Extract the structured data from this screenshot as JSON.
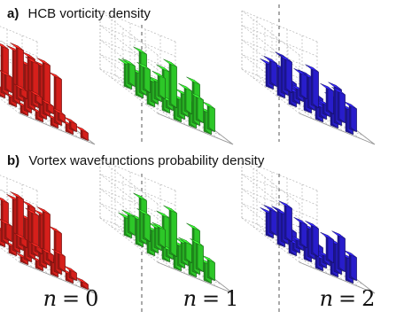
{
  "panel_a": {
    "letter": "a)",
    "title": "HCB vorticity density"
  },
  "panel_b": {
    "letter": "b)",
    "title": "Vortex wavefunctions probability density"
  },
  "columns": [
    {
      "var": "n",
      "eq": "=",
      "value": "0",
      "color": "#e0211c"
    },
    {
      "var": "n",
      "eq": "=",
      "value": "1",
      "color": "#2fd12a"
    },
    {
      "var": "n",
      "eq": "=",
      "value": "2",
      "color": "#2a1fd6"
    }
  ],
  "chart_data": {
    "type": "bar3d",
    "grid_size": [
      5,
      5
    ],
    "panels": [
      {
        "row": "a",
        "n": 0,
        "heights": [
          [
            0.15,
            0.15,
            0.3,
            0.15,
            0.15
          ],
          [
            0.15,
            0.9,
            1.0,
            0.85,
            0.15
          ],
          [
            0.15,
            1.0,
            1.0,
            1.0,
            0.15
          ],
          [
            0.15,
            0.9,
            1.0,
            0.9,
            0.15
          ],
          [
            0.15,
            0.15,
            0.15,
            0.15,
            0.15
          ]
        ]
      },
      {
        "row": "a",
        "n": 1,
        "heights": [
          [
            0.0,
            0.4,
            0.45,
            0.4,
            0.0
          ],
          [
            0.45,
            0.8,
            0.35,
            0.8,
            0.45
          ],
          [
            0.45,
            0.4,
            0.15,
            0.4,
            0.45
          ],
          [
            0.45,
            0.8,
            0.35,
            0.8,
            0.45
          ],
          [
            0.0,
            0.4,
            0.45,
            0.4,
            0.0
          ]
        ]
      },
      {
        "row": "a",
        "n": 2,
        "heights": [
          [
            0.0,
            0.45,
            0.6,
            0.45,
            0.0
          ],
          [
            0.45,
            0.7,
            0.2,
            0.7,
            0.45
          ],
          [
            0.55,
            0.2,
            0.6,
            0.2,
            0.55
          ],
          [
            0.45,
            0.7,
            0.2,
            0.7,
            0.45
          ],
          [
            0.0,
            0.45,
            0.55,
            0.45,
            0.0
          ]
        ]
      },
      {
        "row": "b",
        "n": 0,
        "heights": [
          [
            0.1,
            0.15,
            0.3,
            0.15,
            0.1
          ],
          [
            0.15,
            0.8,
            1.0,
            0.8,
            0.15
          ],
          [
            0.3,
            1.0,
            1.0,
            1.0,
            0.3
          ],
          [
            0.15,
            0.8,
            1.0,
            0.8,
            0.15
          ],
          [
            0.1,
            0.15,
            0.3,
            0.15,
            0.1
          ]
        ]
      },
      {
        "row": "b",
        "n": 1,
        "heights": [
          [
            0.0,
            0.35,
            0.5,
            0.35,
            0.0
          ],
          [
            0.35,
            0.85,
            0.4,
            0.85,
            0.35
          ],
          [
            0.5,
            0.4,
            0.15,
            0.4,
            0.5
          ],
          [
            0.35,
            0.85,
            0.4,
            0.85,
            0.35
          ],
          [
            0.0,
            0.35,
            0.5,
            0.35,
            0.0
          ]
        ]
      },
      {
        "row": "b",
        "n": 2,
        "heights": [
          [
            0.0,
            0.45,
            0.65,
            0.45,
            0.0
          ],
          [
            0.45,
            0.55,
            0.15,
            0.55,
            0.45
          ],
          [
            0.65,
            0.15,
            0.55,
            0.15,
            0.65
          ],
          [
            0.45,
            0.55,
            0.15,
            0.55,
            0.45
          ],
          [
            0.0,
            0.45,
            0.65,
            0.45,
            0.0
          ]
        ]
      }
    ]
  }
}
